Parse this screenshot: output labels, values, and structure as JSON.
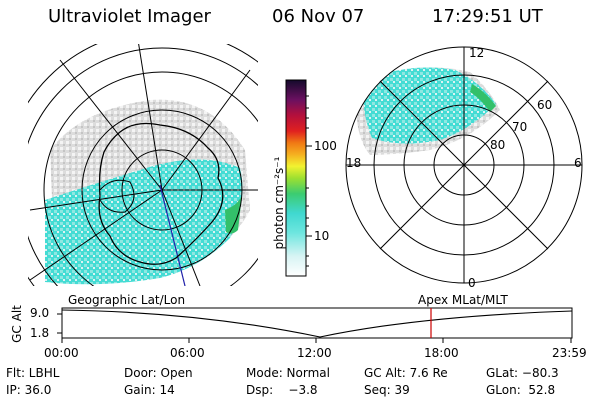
{
  "header": {
    "title": "Ultraviolet Imager",
    "date": "06 Nov 07",
    "time": "17:29:51 UT"
  },
  "colorbar": {
    "unit_label": "photon cm⁻²s⁻¹",
    "ticks": [
      "100",
      "10"
    ]
  },
  "polar_plot": {
    "lat_labels": [
      "80",
      "70",
      "60"
    ],
    "mlt_labels": [
      "12",
      "18",
      "6",
      "0"
    ]
  },
  "timeline": {
    "left_label": "Geographic Lat/Lon",
    "right_label": "Apex MLat/MLT",
    "y_axis_label": "GC Alt",
    "y_ticks": [
      "9.0",
      "1.8"
    ],
    "x_ticks": [
      "00:00",
      "06:00",
      "12:00",
      "18:00",
      "23:59"
    ]
  },
  "info": {
    "row1": {
      "flt": "Flt: LBHL",
      "door": "Door: Open",
      "mode": "Mode: Normal",
      "gc_alt": "GC Alt: 7.6 Re",
      "glat": "GLat: −80.3"
    },
    "row2": {
      "ip": "IP: 36.0",
      "gain": "Gain: 14",
      "dsp": "Dsp:    −3.8",
      "seq": "Seq: 39",
      "glon": "GLon:  52.8"
    }
  },
  "colors": {
    "aurora": "#44dcd4",
    "aurora_edge": "#33c06a",
    "grey_fill": "#d0d0d0",
    "track_marker": "#cc0000"
  }
}
